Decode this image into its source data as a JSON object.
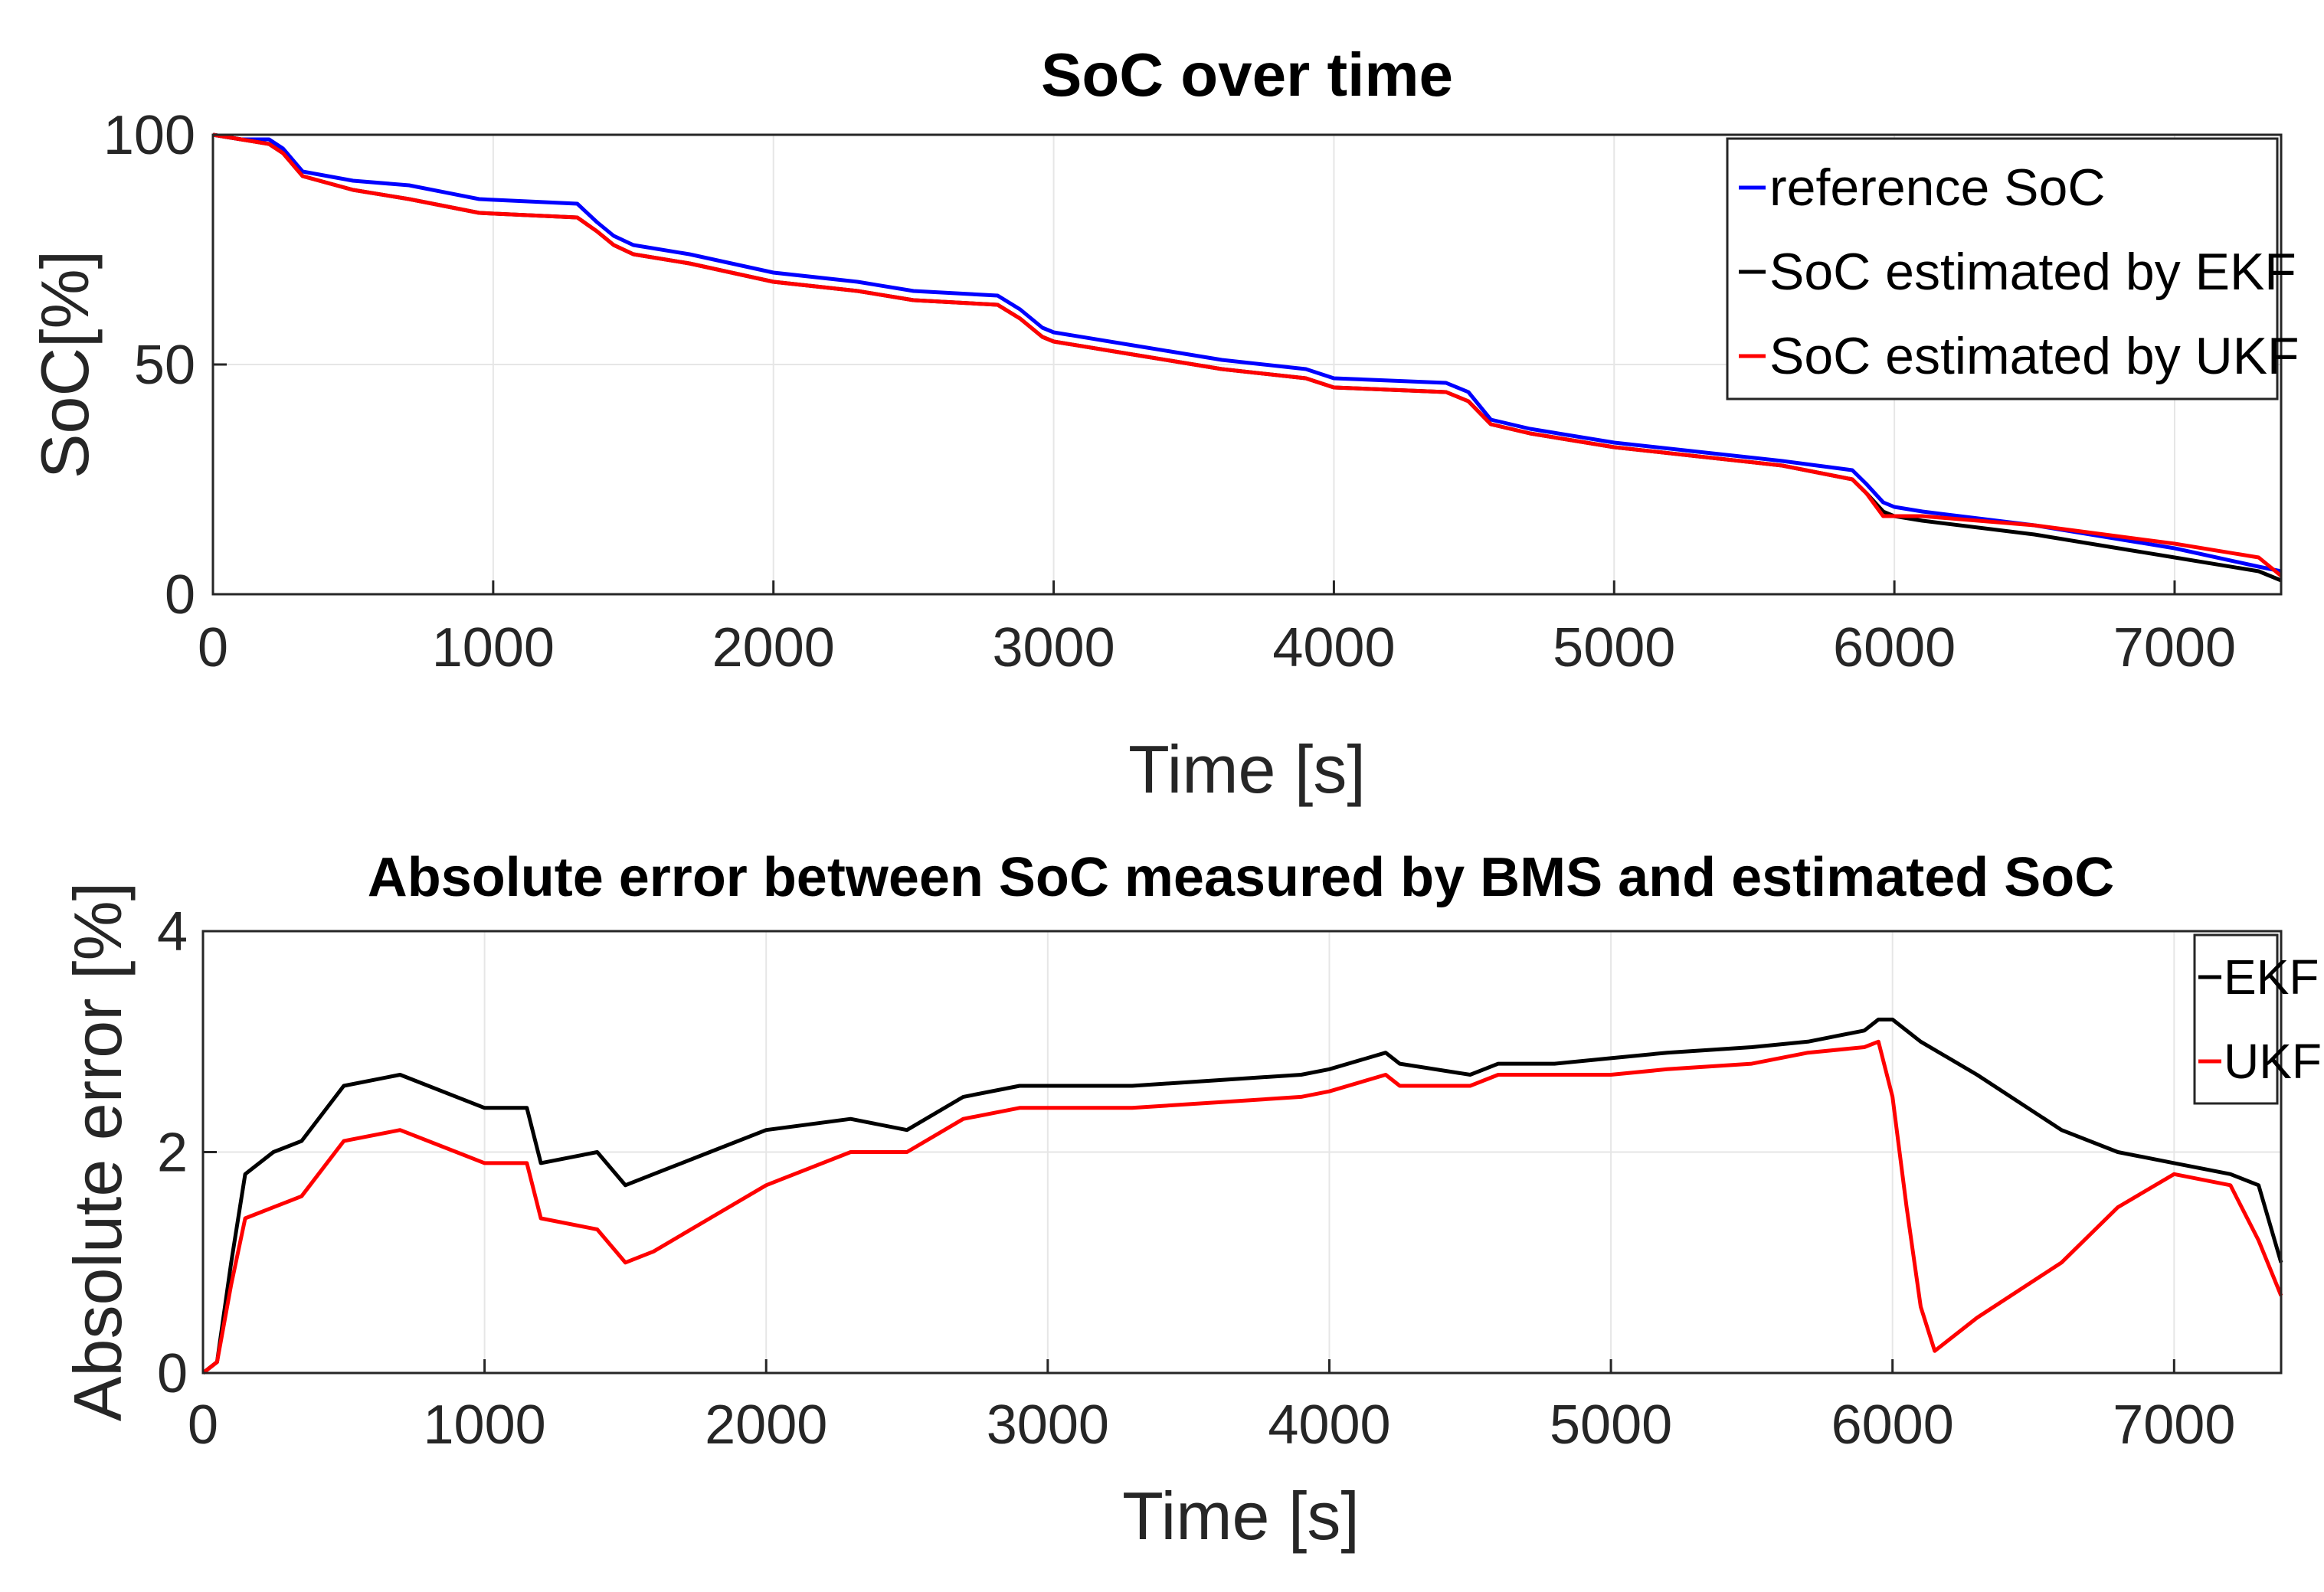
{
  "chart_data": [
    {
      "type": "line",
      "title": "SoC over time",
      "xlabel": "Time [s]",
      "ylabel": "SoC[%]",
      "xlim": [
        0,
        7380
      ],
      "ylim": [
        0,
        100
      ],
      "xticks": [
        0,
        1000,
        2000,
        3000,
        4000,
        5000,
        6000,
        7000
      ],
      "yticks": [
        0,
        50,
        100
      ],
      "grid": true,
      "legend_position": "top-right",
      "series": [
        {
          "name": "reference SoC",
          "color": "#0000ff",
          "x": [
            0,
            100,
            200,
            250,
            320,
            500,
            700,
            950,
            1300,
            1370,
            1430,
            1500,
            1700,
            2000,
            2300,
            2500,
            2800,
            2880,
            2960,
            3000,
            3300,
            3600,
            3900,
            4000,
            4400,
            4480,
            4560,
            4700,
            5000,
            5300,
            5600,
            5850,
            5900,
            5960,
            6000,
            6100,
            6500,
            7000,
            7300,
            7380
          ],
          "values": [
            100,
            99,
            99,
            97,
            92,
            90,
            89,
            86,
            85,
            81,
            78,
            76,
            74,
            70,
            68,
            66,
            65,
            62,
            58,
            57,
            54,
            51,
            49,
            47,
            46,
            44,
            38,
            36,
            33,
            31,
            29,
            27,
            24,
            20,
            19,
            18,
            15,
            10,
            6,
            5
          ]
        },
        {
          "name": "SoC estimated by EKF",
          "color": "#000000",
          "x": [
            0,
            100,
            200,
            250,
            320,
            500,
            700,
            950,
            1300,
            1370,
            1430,
            1500,
            1700,
            2000,
            2300,
            2500,
            2800,
            2880,
            2960,
            3000,
            3300,
            3600,
            3900,
            4000,
            4400,
            4480,
            4560,
            4700,
            5000,
            5300,
            5600,
            5850,
            5900,
            5960,
            6000,
            6100,
            6500,
            7000,
            7300,
            7380
          ],
          "values": [
            100,
            99,
            98,
            96,
            91,
            88,
            86,
            83,
            82,
            79,
            76,
            74,
            72,
            68,
            66,
            64,
            63,
            60,
            56,
            55,
            52,
            49,
            47,
            45,
            44,
            42,
            37,
            35,
            32,
            30,
            28,
            25,
            22,
            18,
            17,
            16,
            13,
            8,
            5,
            3
          ]
        },
        {
          "name": "SoC estimated by UKF",
          "color": "#ff0000",
          "x": [
            0,
            100,
            200,
            250,
            320,
            500,
            700,
            950,
            1300,
            1370,
            1430,
            1500,
            1700,
            2000,
            2300,
            2500,
            2800,
            2880,
            2960,
            3000,
            3300,
            3600,
            3900,
            4000,
            4400,
            4480,
            4560,
            4700,
            5000,
            5300,
            5600,
            5850,
            5900,
            5960,
            6000,
            6100,
            6500,
            7000,
            7300,
            7380
          ],
          "values": [
            100,
            99,
            98,
            96,
            91,
            88,
            86,
            83,
            82,
            79,
            76,
            74,
            72,
            68,
            66,
            64,
            63,
            60,
            56,
            55,
            52,
            49,
            47,
            45,
            44,
            42,
            37,
            35,
            32,
            30,
            28,
            25,
            22,
            17,
            17,
            17,
            15,
            11,
            8,
            4
          ]
        }
      ]
    },
    {
      "type": "line",
      "title": "Absolute error between SoC measured by BMS and estimated SoC",
      "xlabel": "Time [s]",
      "ylabel": "Absolute error [%]",
      "xlim": [
        0,
        7380
      ],
      "ylim": [
        0,
        4
      ],
      "xticks": [
        0,
        1000,
        2000,
        3000,
        4000,
        5000,
        6000,
        7000
      ],
      "yticks": [
        0,
        2,
        4
      ],
      "grid": true,
      "legend_position": "top-right",
      "series": [
        {
          "name": "EKF",
          "color": "#000000",
          "x": [
            0,
            50,
            100,
            150,
            250,
            350,
            500,
            700,
            900,
            1000,
            1150,
            1200,
            1400,
            1500,
            1600,
            1800,
            2000,
            2300,
            2500,
            2700,
            2900,
            3000,
            3300,
            3600,
            3900,
            4000,
            4200,
            4250,
            4500,
            4600,
            4800,
            5000,
            5200,
            5500,
            5700,
            5900,
            5950,
            6000,
            6100,
            6300,
            6600,
            6800,
            7000,
            7200,
            7300,
            7380
          ],
          "values": [
            0,
            0.1,
            1,
            1.8,
            2.0,
            2.1,
            2.6,
            2.7,
            2.5,
            2.4,
            2.4,
            1.9,
            2.0,
            1.7,
            1.8,
            2.0,
            2.2,
            2.3,
            2.2,
            2.5,
            2.6,
            2.6,
            2.6,
            2.65,
            2.7,
            2.75,
            2.9,
            2.8,
            2.7,
            2.8,
            2.8,
            2.85,
            2.9,
            2.95,
            3.0,
            3.1,
            3.2,
            3.2,
            3.0,
            2.7,
            2.2,
            2.0,
            1.9,
            1.8,
            1.7,
            1.0
          ]
        },
        {
          "name": "UKF",
          "color": "#ff0000",
          "x": [
            0,
            50,
            100,
            150,
            250,
            350,
            500,
            700,
            900,
            1000,
            1150,
            1200,
            1400,
            1500,
            1600,
            1800,
            2000,
            2300,
            2500,
            2700,
            2900,
            3000,
            3300,
            3600,
            3900,
            4000,
            4200,
            4250,
            4500,
            4600,
            4800,
            5000,
            5200,
            5500,
            5700,
            5900,
            5950,
            6000,
            6050,
            6100,
            6150,
            6300,
            6600,
            6800,
            7000,
            7200,
            7300,
            7380
          ],
          "values": [
            0,
            0.1,
            0.8,
            1.4,
            1.5,
            1.6,
            2.1,
            2.2,
            2.0,
            1.9,
            1.9,
            1.4,
            1.3,
            1.0,
            1.1,
            1.4,
            1.7,
            2.0,
            2.0,
            2.3,
            2.4,
            2.4,
            2.4,
            2.45,
            2.5,
            2.55,
            2.7,
            2.6,
            2.6,
            2.7,
            2.7,
            2.7,
            2.75,
            2.8,
            2.9,
            2.95,
            3.0,
            2.5,
            1.5,
            0.6,
            0.2,
            0.5,
            1.0,
            1.5,
            1.8,
            1.7,
            1.2,
            0.7
          ]
        }
      ]
    }
  ]
}
